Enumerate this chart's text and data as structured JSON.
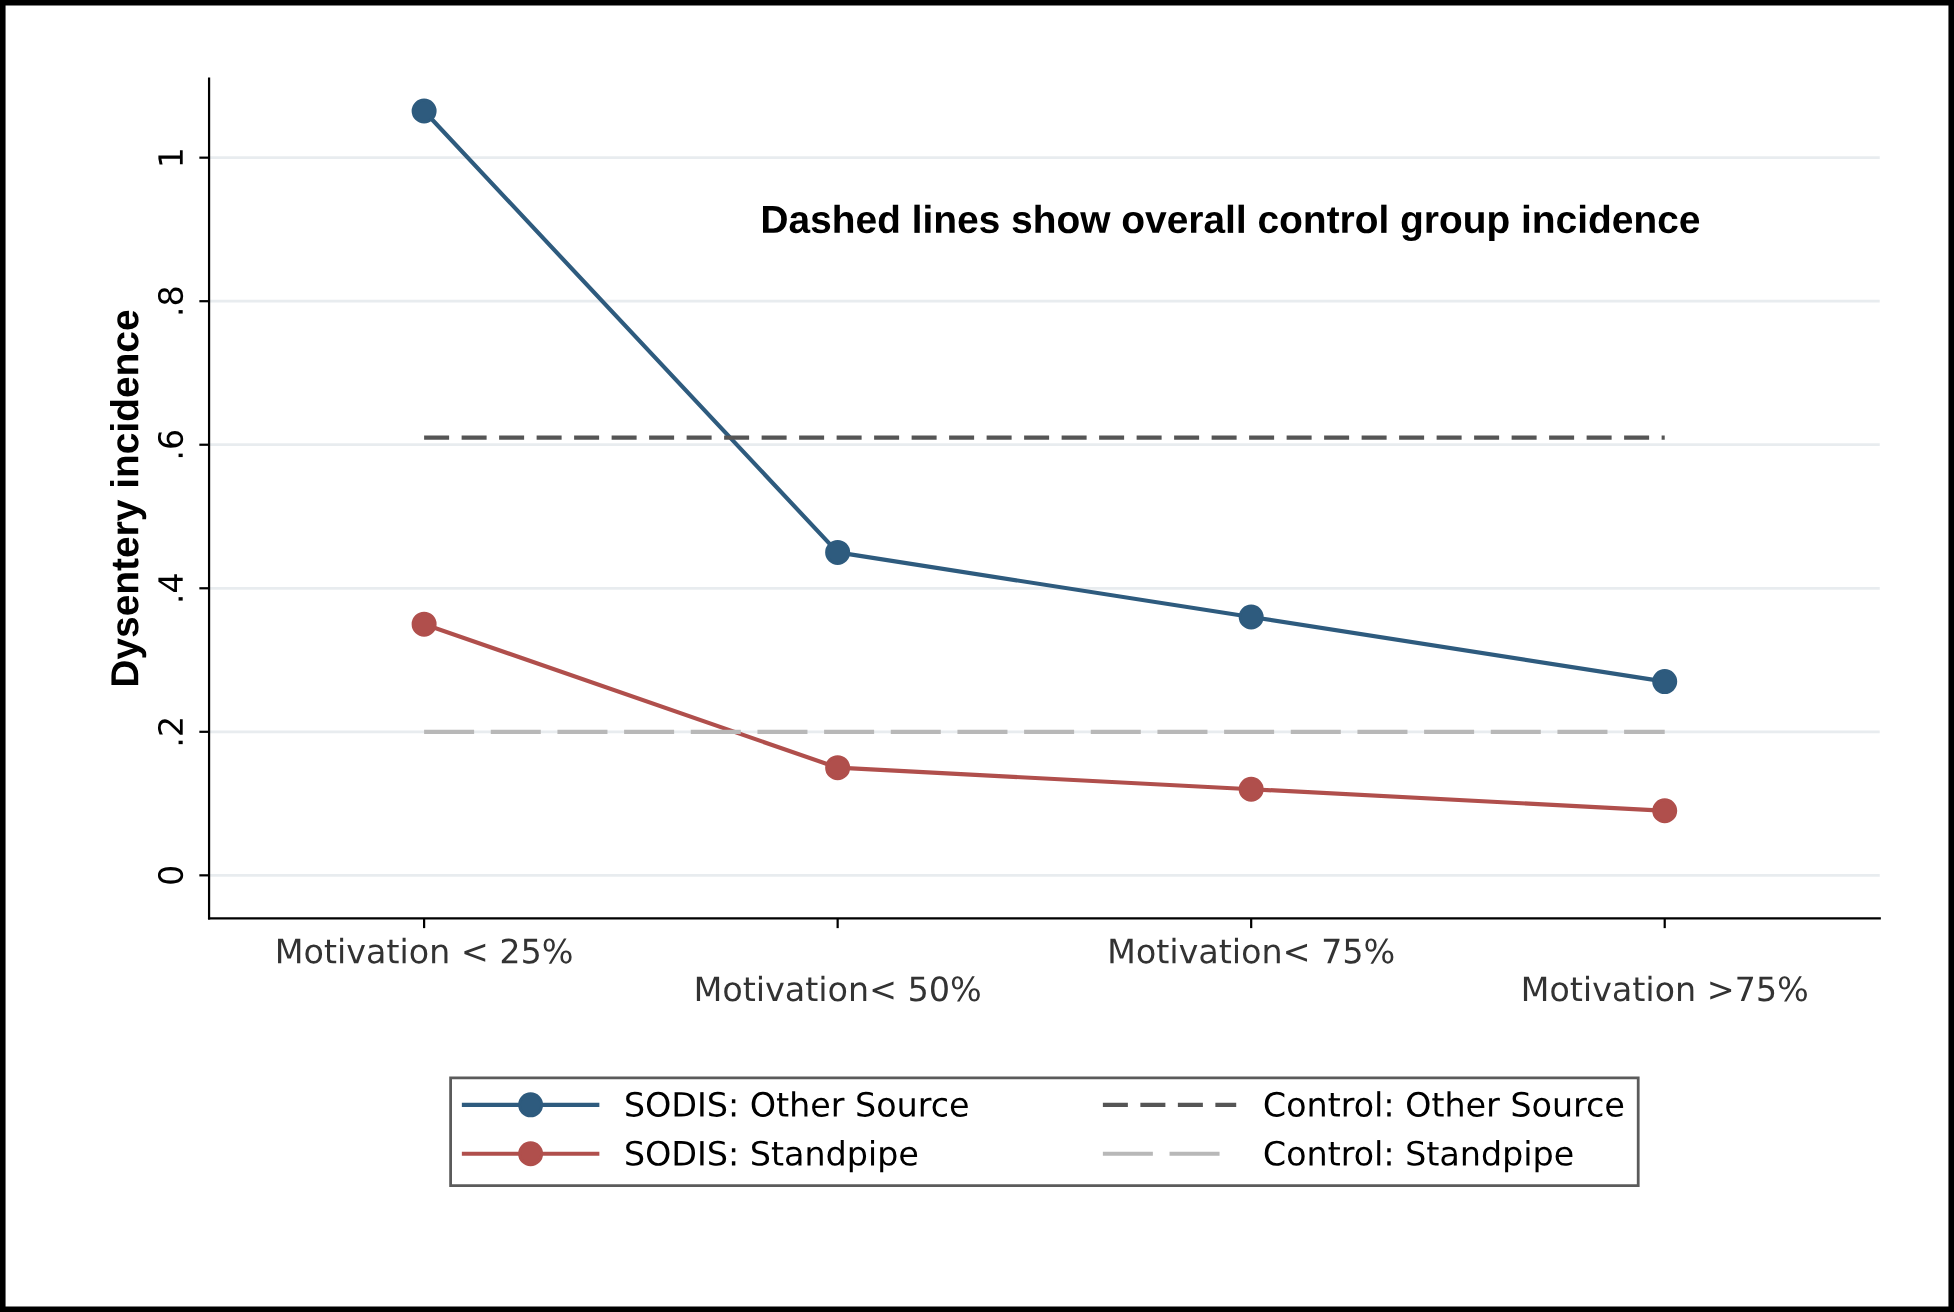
{
  "chart_data": {
    "type": "line",
    "ylabel": "Dysentery incidence",
    "categories": [
      "Motivation < 25%",
      "Motivation< 50%",
      "Motivation< 75%",
      "Motivation >75%"
    ],
    "series": [
      {
        "name": "SODIS: Other Source",
        "color": "#2e5b7e",
        "values": [
          1.065,
          0.45,
          0.36,
          0.27
        ],
        "marker": "circle",
        "line_style": "solid"
      },
      {
        "name": "SODIS: Standpipe",
        "color": "#b04f4c",
        "values": [
          0.35,
          0.15,
          0.12,
          0.09
        ],
        "marker": "circle",
        "line_style": "solid"
      },
      {
        "name": "Control: Other Source",
        "color": "#555555",
        "values": [
          0.61,
          0.61,
          0.61,
          0.61
        ],
        "marker": "none",
        "line_style": "dashed"
      },
      {
        "name": "Control: Standpipe",
        "color": "#b8b8b8",
        "values": [
          0.2,
          0.2,
          0.2,
          0.2
        ],
        "marker": "none",
        "line_style": "dashed"
      }
    ],
    "ylim": [
      -0.06,
      1.11
    ],
    "yticks": [
      0,
      {
        "value": 0.2,
        "label": ".2"
      },
      {
        "value": 0.4,
        "label": ".4"
      },
      {
        "value": 0.6,
        "label": ".6"
      },
      {
        "value": 0.8,
        "label": ".8"
      },
      1
    ],
    "grid": "y",
    "legend": "bottom",
    "annotations": [
      "Dashed lines show overall control group incidence"
    ]
  }
}
